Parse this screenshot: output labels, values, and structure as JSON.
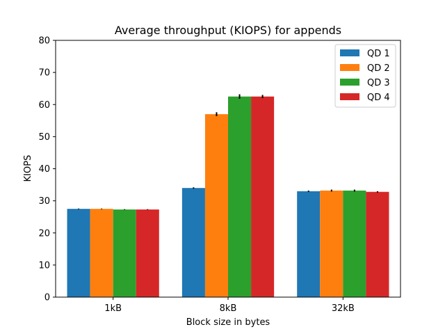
{
  "chart_data": {
    "type": "bar",
    "title": "Average throughput (KIOPS) for appends",
    "xlabel": "Block size in bytes",
    "ylabel": "KIOPS",
    "ylim": [
      0,
      80
    ],
    "yticks": [
      0,
      10,
      20,
      30,
      40,
      50,
      60,
      70,
      80
    ],
    "categories": [
      "1kB",
      "8kB",
      "32kB"
    ],
    "legend_position": "top-right",
    "grid": false,
    "series": [
      {
        "name": "QD 1",
        "color": "#1f77b4",
        "values": [
          27.5,
          34.0,
          33.0
        ],
        "errors": [
          0.1,
          0.2,
          0.2
        ]
      },
      {
        "name": "QD 2",
        "color": "#ff7f0e",
        "values": [
          27.5,
          57.0,
          33.2
        ],
        "errors": [
          0.1,
          0.6,
          0.3
        ]
      },
      {
        "name": "QD 3",
        "color": "#2ca02c",
        "values": [
          27.3,
          62.5,
          33.2
        ],
        "errors": [
          0.1,
          0.7,
          0.3
        ]
      },
      {
        "name": "QD 4",
        "color": "#d62728",
        "values": [
          27.3,
          62.5,
          32.8
        ],
        "errors": [
          0.1,
          0.5,
          0.2
        ]
      }
    ]
  }
}
